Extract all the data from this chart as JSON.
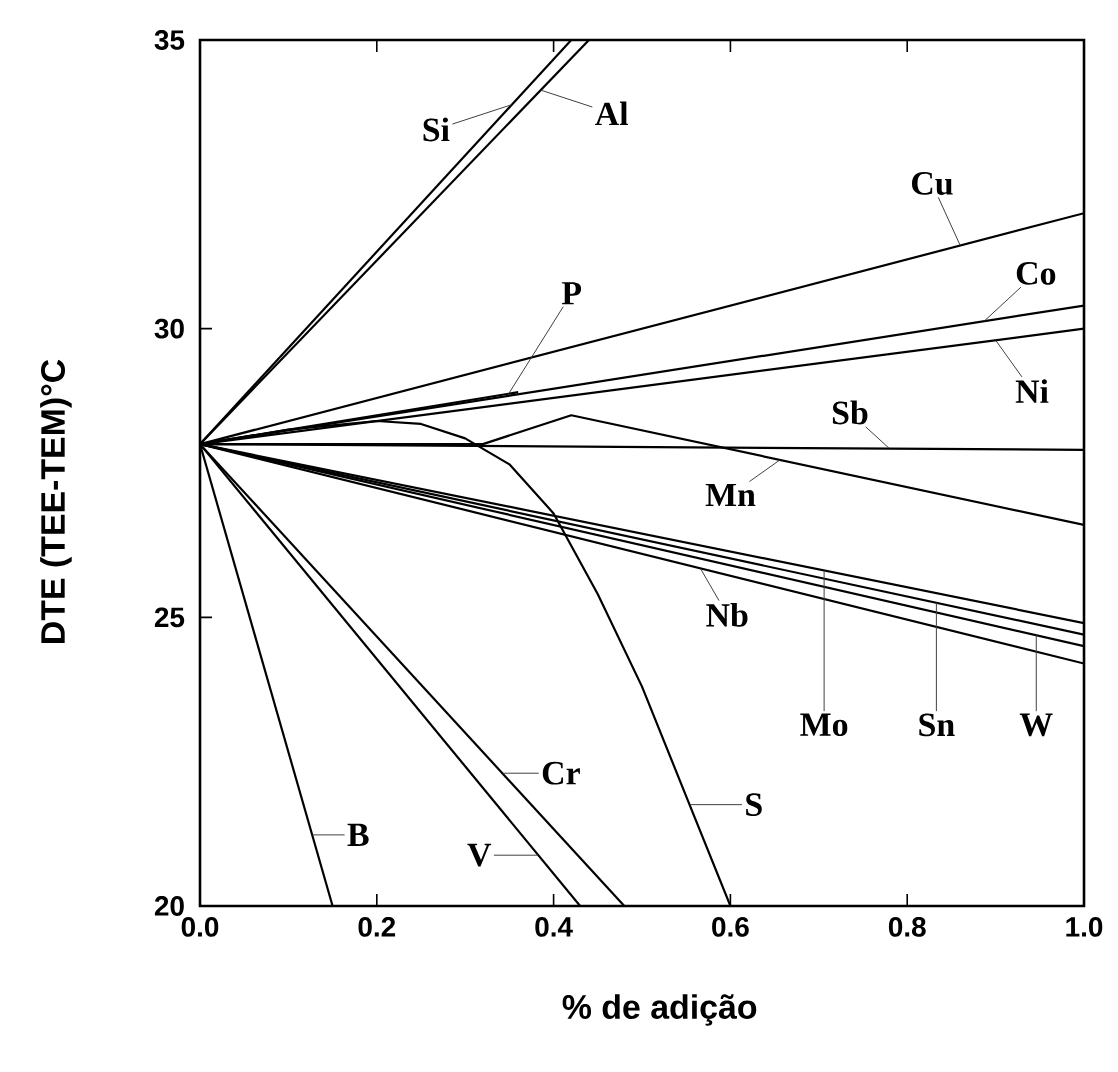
{
  "chart_data": {
    "type": "line",
    "xlabel": "% de adição",
    "ylabel": "DTE (TEE-TEM)°C",
    "xlim": [
      0,
      1.0
    ],
    "ylim": [
      20,
      35
    ],
    "xticks": [
      {
        "value": 0,
        "label": "0.0"
      },
      0.2,
      0.4,
      0.6,
      0.8,
      {
        "value": 1.0,
        "label": "1.0"
      }
    ],
    "yticks": [
      20,
      25,
      30,
      35
    ],
    "series": [
      {
        "name": "Si",
        "color": "#000000",
        "x": [
          0,
          0.42
        ],
        "values": [
          28,
          35
        ]
      },
      {
        "name": "Al",
        "color": "#000000",
        "x": [
          0,
          0.44
        ],
        "values": [
          28,
          35
        ]
      },
      {
        "name": "Cu",
        "color": "#000000",
        "x": [
          0,
          1.0
        ],
        "values": [
          28,
          32.0
        ]
      },
      {
        "name": "P",
        "color": "#000000",
        "x": [
          0,
          0.36
        ],
        "values": [
          28,
          28.9
        ]
      },
      {
        "name": "Co",
        "color": "#000000",
        "x": [
          0,
          1.0
        ],
        "values": [
          28,
          30.4
        ]
      },
      {
        "name": "Ni",
        "color": "#000000",
        "x": [
          0,
          1.0
        ],
        "values": [
          28,
          30.0
        ]
      },
      {
        "name": "Sb",
        "color": "#000000",
        "x": [
          0,
          1.0
        ],
        "values": [
          28,
          27.9
        ]
      },
      {
        "name": "Mn",
        "color": "#000000",
        "x": [
          0,
          0.32,
          0.42,
          1.0
        ],
        "values": [
          28,
          28,
          28.5,
          26.6
        ]
      },
      {
        "name": "Nb",
        "color": "#000000",
        "x": [
          0,
          1.0
        ],
        "values": [
          28,
          24.2
        ]
      },
      {
        "name": "Mo",
        "color": "#000000",
        "x": [
          0,
          1.0
        ],
        "values": [
          28,
          24.9
        ]
      },
      {
        "name": "Sn",
        "color": "#000000",
        "x": [
          0,
          1.0
        ],
        "values": [
          28,
          24.7
        ]
      },
      {
        "name": "W",
        "color": "#000000",
        "x": [
          0,
          1.0
        ],
        "values": [
          28,
          24.5
        ]
      },
      {
        "name": "S",
        "color": "#000000",
        "x": [
          0,
          0.1,
          0.2,
          0.25,
          0.3,
          0.35,
          0.4,
          0.45,
          0.5,
          0.55,
          0.6
        ],
        "values": [
          28,
          28.25,
          28.4,
          28.35,
          28.1,
          27.65,
          26.8,
          25.4,
          23.8,
          21.9,
          20
        ]
      },
      {
        "name": "Cr",
        "color": "#000000",
        "x": [
          0,
          0.48
        ],
        "values": [
          28,
          20
        ]
      },
      {
        "name": "V",
        "color": "#000000",
        "x": [
          0,
          0.43
        ],
        "values": [
          28,
          20
        ]
      },
      {
        "name": "B",
        "color": "#000000",
        "x": [
          0,
          0.15
        ],
        "values": [
          28,
          20
        ]
      }
    ]
  }
}
